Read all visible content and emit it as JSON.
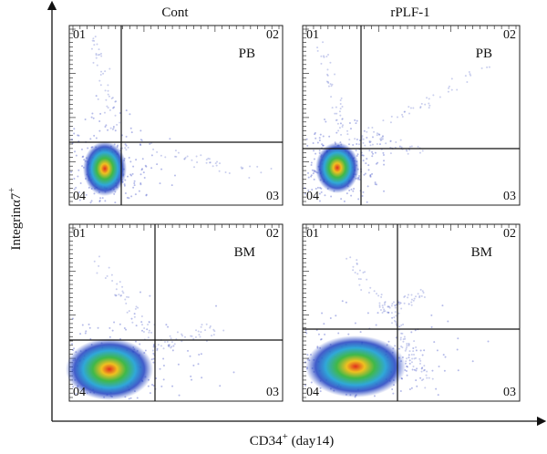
{
  "figure": {
    "y_label": {
      "text": "Integrinα7",
      "sup": "+"
    },
    "x_label": {
      "text": "CD34",
      "sup": "+",
      "suffix": " (day14)"
    },
    "columns": [
      "Cont",
      "rPLF-1"
    ],
    "panels": [
      {
        "tissue": "PB",
        "quadrants": [
          "01",
          "02",
          "03",
          "04"
        ]
      },
      {
        "tissue": "PB",
        "quadrants": [
          "01",
          "02",
          "03",
          "04"
        ]
      },
      {
        "tissue": "BM",
        "quadrants": [
          "01",
          "02",
          "03",
          "04"
        ]
      },
      {
        "tissue": "BM",
        "quadrants": [
          "01",
          "02",
          "03",
          "04"
        ]
      }
    ]
  }
}
